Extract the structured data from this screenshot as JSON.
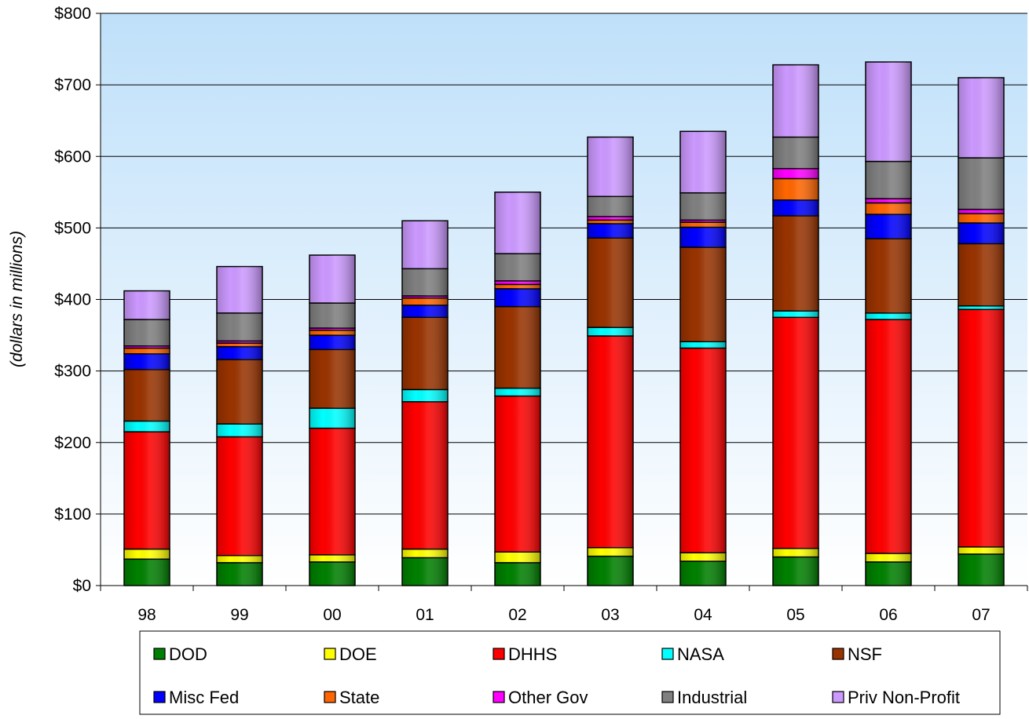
{
  "chart_data": {
    "type": "bar",
    "stacked": true,
    "title": "",
    "xlabel": "",
    "ylabel": "(dollars in millions)",
    "ylim": [
      0,
      800
    ],
    "y_ticks": [
      "$0",
      "$100",
      "$200",
      "$300",
      "$400",
      "$500",
      "$600",
      "$700",
      "$800"
    ],
    "y_tick_values": [
      0,
      100,
      200,
      300,
      400,
      500,
      600,
      700,
      800
    ],
    "grid": true,
    "legend_position": "bottom",
    "categories": [
      "98",
      "99",
      "00",
      "01",
      "02",
      "03",
      "04",
      "05",
      "06",
      "07"
    ],
    "series": [
      {
        "name": "DOD",
        "color": "#008000",
        "values": [
          37,
          32,
          33,
          39,
          32,
          41,
          34,
          40,
          33,
          44
        ]
      },
      {
        "name": "DOE",
        "color": "#FFFF00",
        "values": [
          14,
          10,
          10,
          12,
          15,
          12,
          12,
          12,
          12,
          10
        ]
      },
      {
        "name": "DHHS",
        "color": "#FF0000",
        "values": [
          164,
          166,
          177,
          206,
          218,
          296,
          286,
          323,
          327,
          332
        ]
      },
      {
        "name": "NASA",
        "color": "#00FFFF",
        "values": [
          15,
          18,
          28,
          17,
          11,
          12,
          9,
          9,
          9,
          5
        ]
      },
      {
        "name": "NSF",
        "color": "#993300",
        "values": [
          72,
          90,
          82,
          101,
          114,
          125,
          132,
          133,
          104,
          87
        ]
      },
      {
        "name": "Misc Fed",
        "color": "#0000FF",
        "values": [
          22,
          18,
          20,
          17,
          25,
          20,
          28,
          22,
          34,
          29
        ]
      },
      {
        "name": "State",
        "color": "#FF6600",
        "values": [
          8,
          5,
          7,
          10,
          6,
          5,
          7,
          30,
          16,
          13
        ]
      },
      {
        "name": "Other Gov",
        "color": "#FF00FF",
        "values": [
          3,
          3,
          3,
          3,
          5,
          5,
          3,
          14,
          6,
          6
        ]
      },
      {
        "name": "Industrial",
        "color": "#808080",
        "values": [
          37,
          39,
          35,
          38,
          38,
          28,
          38,
          44,
          52,
          72
        ]
      },
      {
        "name": "Priv Non-Profit",
        "color": "#CC99FF",
        "values": [
          40,
          65,
          67,
          67,
          86,
          83,
          86,
          101,
          139,
          112
        ]
      }
    ]
  }
}
